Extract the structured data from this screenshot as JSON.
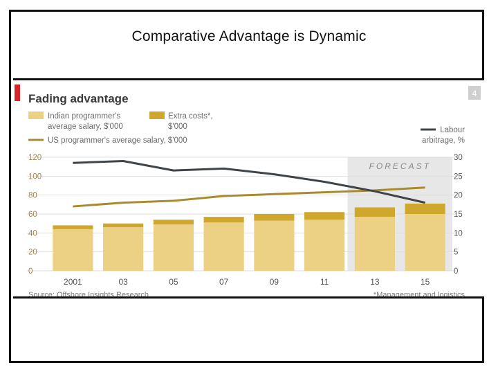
{
  "slide": {
    "title": "Comparative Advantage is Dynamic"
  },
  "colors": {
    "red_marker": "#d8242a",
    "salary_bar": "#ecd185",
    "extra_bar": "#cfa72c",
    "us_line": "#a98b2e",
    "arbitrage_line": "#3f4449",
    "forecast_bg": "#e7e7e7",
    "axis_text": "#9a8a58",
    "grid": "#dedede"
  },
  "chart_data": {
    "type": "bar",
    "title": "Fading advantage",
    "page_badge": "4",
    "categories": [
      "2001",
      "03",
      "05",
      "07",
      "09",
      "11",
      "13",
      "15"
    ],
    "series": [
      {
        "name": "Indian programmer's average salary, $'000",
        "kind": "stacked-bar",
        "values": [
          44,
          46,
          49,
          51,
          53,
          54,
          57,
          60
        ]
      },
      {
        "name": "Extra costs*, $'000",
        "kind": "stacked-bar",
        "values": [
          4,
          4,
          5,
          6,
          7,
          8,
          10,
          11
        ]
      },
      {
        "name": "US programmer's average salary, $'000",
        "kind": "line",
        "axis": "left",
        "values": [
          68,
          72,
          74,
          79,
          81,
          83,
          85,
          88
        ]
      },
      {
        "name": "Labour arbitrage, %",
        "kind": "line",
        "axis": "right",
        "values": [
          28.5,
          29,
          26.5,
          27,
          25.5,
          23.5,
          21,
          18
        ]
      }
    ],
    "legend": {
      "salary_label": [
        "Indian programmer's",
        "average salary, $'000"
      ],
      "extra_label": [
        "Extra costs*,",
        "$'000"
      ],
      "us_label": "US programmer's average salary, $'000",
      "arbitrage_label": [
        "Labour",
        "arbitrage, %"
      ]
    },
    "y_left": {
      "lim": [
        0,
        120
      ],
      "ticks": [
        0,
        20,
        40,
        60,
        80,
        100,
        120
      ]
    },
    "y_right": {
      "lim": [
        0,
        30
      ],
      "ticks": [
        0,
        5,
        10,
        15,
        20,
        25,
        30
      ]
    },
    "forecast": {
      "label": "FORECAST",
      "from_category": "13"
    },
    "grid": true,
    "source": "Source: Offshore Insights Research",
    "footnote": "*Management and logistics"
  }
}
